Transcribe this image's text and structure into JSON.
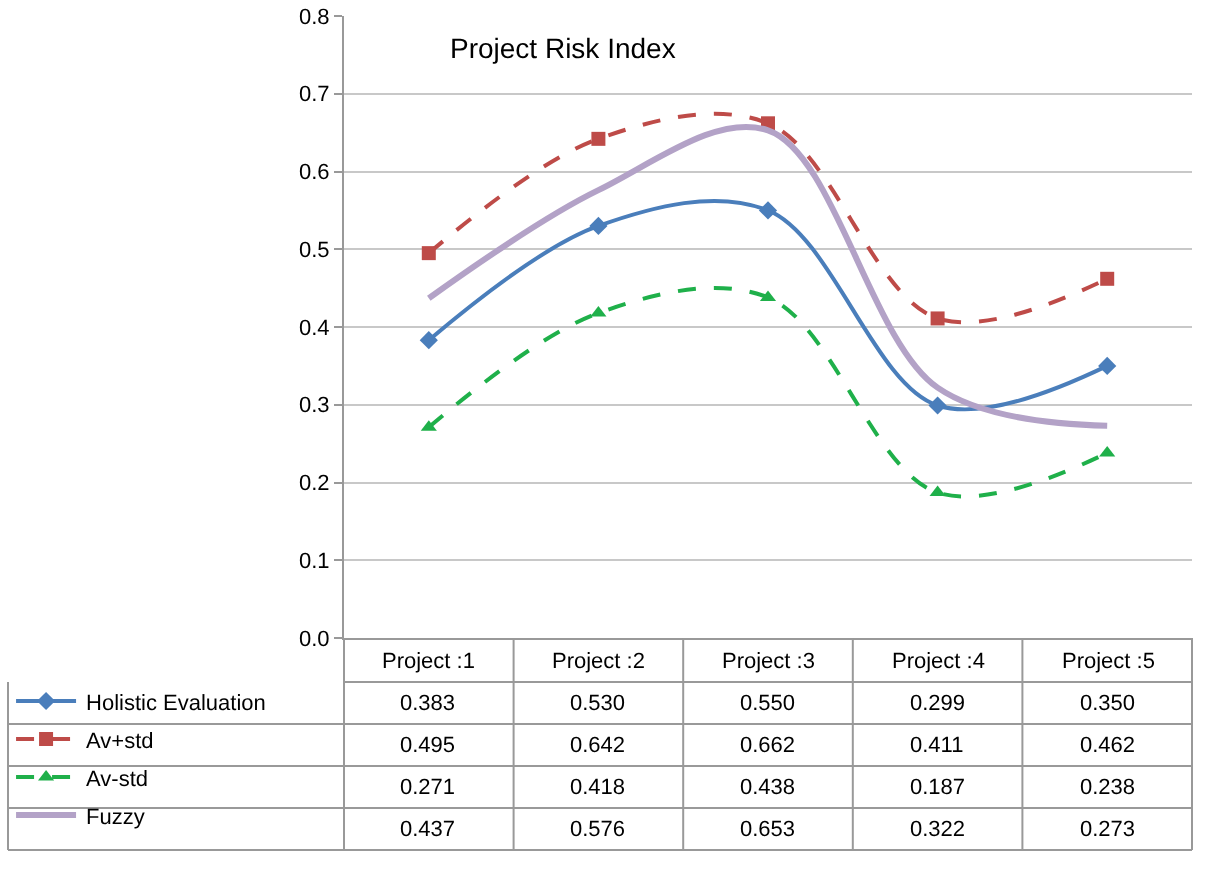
{
  "chart_data": {
    "type": "line",
    "title": "Project Risk Index",
    "categories": [
      "Project :1",
      "Project :2",
      "Project :3",
      "Project :4",
      "Project :5"
    ],
    "series": [
      {
        "name": "Holistic Evaluation",
        "color": "#4a7ebb",
        "values": [
          0.383,
          0.53,
          0.55,
          0.299,
          0.35
        ],
        "value_labels": [
          "0.383",
          "0.530",
          "0.550",
          "0.299",
          "0.350"
        ],
        "marker": "diamond",
        "line_style": "solid"
      },
      {
        "name": "Av+std",
        "color": "#be4b48",
        "values": [
          0.495,
          0.642,
          0.662,
          0.411,
          0.462
        ],
        "value_labels": [
          "0.495",
          "0.642",
          "0.662",
          "0.411",
          "0.462"
        ],
        "marker": "square",
        "line_style": "dashed"
      },
      {
        "name": "Av-std",
        "color": "#1fb04a",
        "values": [
          0.271,
          0.418,
          0.438,
          0.187,
          0.238
        ],
        "value_labels": [
          "0.271",
          "0.418",
          "0.438",
          "0.187",
          "0.238"
        ],
        "marker": "triangle",
        "line_style": "dashed"
      },
      {
        "name": "Fuzzy",
        "color": "#b3a2c7",
        "values": [
          0.437,
          0.576,
          0.653,
          0.322,
          0.273
        ],
        "value_labels": [
          "0.437",
          "0.576",
          "0.653",
          "0.322",
          "0.273"
        ],
        "marker": "none",
        "line_style": "solid"
      }
    ],
    "ylim": [
      0,
      0.8
    ],
    "yticks": [
      {
        "value": 0,
        "label": "0.0"
      },
      {
        "value": 0.1,
        "label": "0.1"
      },
      {
        "value": 0.2,
        "label": "0.2"
      },
      {
        "value": 0.3,
        "label": "0.3"
      },
      {
        "value": 0.4,
        "label": "0.4"
      },
      {
        "value": 0.5,
        "label": "0.5"
      },
      {
        "value": 0.6,
        "label": "0.6"
      },
      {
        "value": 0.7,
        "label": "0.7"
      },
      {
        "value": 0.8,
        "label": "0.8"
      }
    ],
    "grid": "y",
    "legend": "bottom left"
  }
}
